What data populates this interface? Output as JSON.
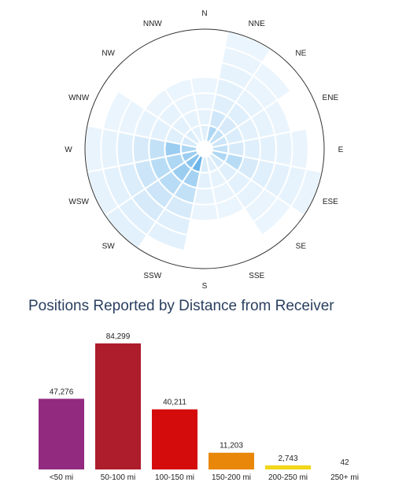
{
  "polar": {
    "directions": [
      "N",
      "NNE",
      "NE",
      "ENE",
      "E",
      "ESE",
      "SE",
      "SSE",
      "S",
      "SSW",
      "SW",
      "WSW",
      "W",
      "WNW",
      "NW",
      "NNW"
    ],
    "rings": 7,
    "intensity_by_direction": [
      [
        0.1,
        0.06,
        0.05,
        0.04,
        0.0,
        0.0,
        0.0
      ],
      [
        0.35,
        0.18,
        0.1,
        0.08,
        0.06,
        0.05,
        0.04
      ],
      [
        0.25,
        0.15,
        0.1,
        0.06,
        0.05,
        0.04,
        0.0
      ],
      [
        0.2,
        0.12,
        0.08,
        0.06,
        0.05,
        0.0,
        0.0
      ],
      [
        0.25,
        0.15,
        0.1,
        0.08,
        0.06,
        0.05,
        0.0
      ],
      [
        0.35,
        0.3,
        0.15,
        0.1,
        0.08,
        0.06,
        0.05
      ],
      [
        0.15,
        0.1,
        0.08,
        0.06,
        0.05,
        0.04,
        0.0
      ],
      [
        0.1,
        0.06,
        0.05,
        0.04,
        0.0,
        0.0,
        0.0
      ],
      [
        0.12,
        0.08,
        0.06,
        0.05,
        0.0,
        0.0,
        0.0
      ],
      [
        0.7,
        0.4,
        0.25,
        0.15,
        0.1,
        0.08,
        0.0
      ],
      [
        0.55,
        0.45,
        0.3,
        0.2,
        0.15,
        0.1,
        0.08
      ],
      [
        0.45,
        0.35,
        0.3,
        0.2,
        0.12,
        0.08,
        0.06
      ],
      [
        0.35,
        0.45,
        0.25,
        0.15,
        0.1,
        0.06,
        0.05
      ],
      [
        0.15,
        0.1,
        0.08,
        0.06,
        0.05,
        0.04,
        0.0
      ],
      [
        0.12,
        0.08,
        0.06,
        0.05,
        0.0,
        0.0,
        0.0
      ],
      [
        0.08,
        0.06,
        0.05,
        0.04,
        0.0,
        0.0,
        0.0
      ]
    ],
    "color_low": "#f3f9fe",
    "color_high": "#2f97e0"
  },
  "chart_title": "Positions Reported by Distance from Receiver",
  "chart_data": {
    "type": "bar",
    "categories": [
      "<50 mi",
      "50-100 mi",
      "100-150 mi",
      "150-200 mi",
      "200-250 mi",
      "250+ mi"
    ],
    "values": [
      47276,
      84299,
      40211,
      11203,
      2743,
      42
    ],
    "value_labels": [
      "47,276",
      "84,299",
      "40,211",
      "11,203",
      "2,743",
      "42"
    ],
    "colors": [
      "#922b80",
      "#ad1d2c",
      "#d40c0c",
      "#e8870a",
      "#f2d619",
      "#f2d619"
    ],
    "title": "Positions Reported by Distance from Receiver",
    "ylim": [
      0,
      84299
    ]
  }
}
